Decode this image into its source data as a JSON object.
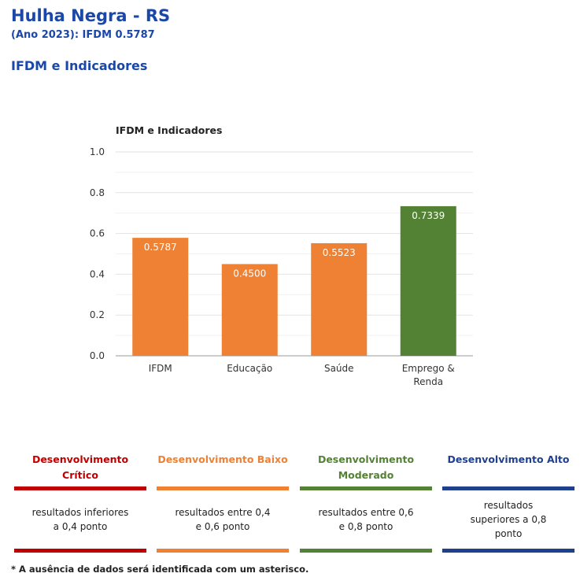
{
  "header": {
    "title": "Hulha Negra - RS",
    "subtitle": "(Ano 2023): IFDM 0.5787",
    "section_title": "IFDM e Indicadores"
  },
  "chart_data": {
    "type": "bar",
    "title": "IFDM e Indicadores",
    "categories": [
      "IFDM",
      "Educação",
      "Saúde",
      "Emprego & Renda"
    ],
    "values": [
      0.5787,
      0.45,
      0.5523,
      0.7339
    ],
    "value_labels": [
      "0.5787",
      "0.4500",
      "0.5523",
      "0.7339"
    ],
    "bar_colors": [
      "#ee8133",
      "#ee8133",
      "#ee8133",
      "#548235"
    ],
    "ylim": [
      0,
      1
    ],
    "yticks": [
      "0.0",
      "0.2",
      "0.4",
      "0.6",
      "0.8",
      "1.0"
    ],
    "grid": true
  },
  "legend": [
    {
      "title": "Desenvolvimento Crítico",
      "color": "#c00000",
      "desc": "resultados inferiores a 0,4 ponto"
    },
    {
      "title": "Desenvolvimento Baixo",
      "color": "#ee8133",
      "desc": "resultados entre 0,4 e 0,6 ponto"
    },
    {
      "title": "Desenvolvimento Moderado",
      "color": "#548235",
      "desc": "resultados entre 0,6 e 0,8 ponto"
    },
    {
      "title": "Desenvolvimento Alto",
      "color": "#1f3f8f",
      "desc": "resultados superiores a 0,8 ponto"
    }
  ],
  "footnote": "* A ausência de dados será identificada com um asterisco."
}
